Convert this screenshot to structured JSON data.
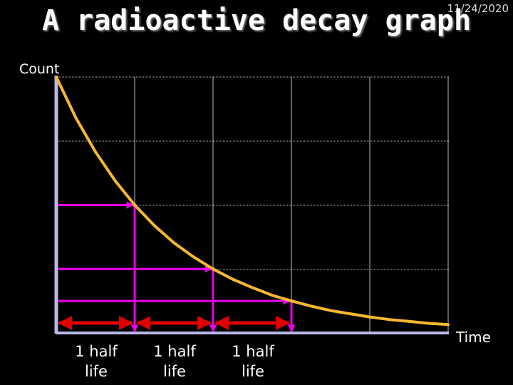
{
  "header": {
    "title": "A radioactive decay graph",
    "date": "11/24/2020"
  },
  "chart_data": {
    "type": "line",
    "title": "A radioactive decay graph",
    "ylabel": "Count",
    "xlabel": "Time",
    "xlim": [
      0,
      5
    ],
    "ylim": [
      0,
      4
    ],
    "grid": true,
    "series": [
      {
        "x": [
          0,
          0.25,
          0.5,
          0.75,
          1,
          1.25,
          1.5,
          1.75,
          2,
          2.25,
          2.5,
          2.75,
          3,
          3.25,
          3.5,
          3.75,
          4,
          4.25,
          4.5,
          4.75,
          5
        ],
        "y": [
          4.0,
          3.36,
          2.83,
          2.38,
          2.0,
          1.68,
          1.41,
          1.19,
          1.0,
          0.84,
          0.71,
          0.59,
          0.5,
          0.42,
          0.35,
          0.3,
          0.25,
          0.21,
          0.18,
          0.15,
          0.13
        ]
      }
    ],
    "half_life_points": [
      {
        "x": 1,
        "y": 2.0
      },
      {
        "x": 2,
        "y": 1.0
      },
      {
        "x": 3,
        "y": 0.5
      }
    ],
    "half_life_intervals": [
      {
        "from": 0,
        "to": 1,
        "label": [
          "1 half",
          "life"
        ]
      },
      {
        "from": 1,
        "to": 2,
        "label": [
          "1 half",
          "life"
        ]
      },
      {
        "from": 2,
        "to": 3,
        "label": [
          "1 half",
          "life"
        ]
      }
    ],
    "colors": {
      "curve": "#f5b82e",
      "guides": "#ee00ee",
      "intervals": "#e00000",
      "grid": "#bdbdbd",
      "axis": "#b8b8e8"
    }
  }
}
